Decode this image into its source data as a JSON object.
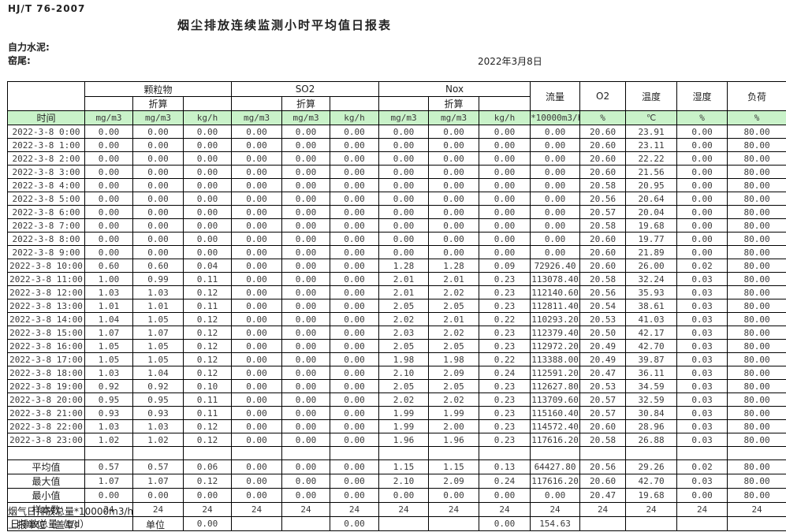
{
  "page": {
    "standard": "HJ/T  76-2007",
    "title": "烟尘排放连续监测小时平均值日报表",
    "company": "自力水泥:",
    "location": "窑尾:",
    "date": "2022年3月8日"
  },
  "table": {
    "time_label": "时间",
    "converted_label": "折算",
    "groups": {
      "pm": "颗粒物",
      "so2": "SO2",
      "nox": "Nox",
      "flow": "流量",
      "o2": "O2",
      "temp": "温度",
      "humidity": "湿度",
      "load": "负荷"
    },
    "units": [
      "mg/m3",
      "mg/m3",
      "kg/h",
      "mg/m3",
      "mg/m3",
      "kg/h",
      "mg/m3",
      "mg/m3",
      "kg/h",
      "*10000m3/h",
      "%",
      "℃",
      "%",
      "%"
    ],
    "rows": [
      {
        "time": "2022-3-8 0:00",
        "values": [
          "0.00",
          "0.00",
          "0.00",
          "0.00",
          "0.00",
          "0.00",
          "0.00",
          "0.00",
          "0.00",
          "0.00",
          "20.60",
          "23.91",
          "0.00",
          "80.00"
        ]
      },
      {
        "time": "2022-3-8 1:00",
        "values": [
          "0.00",
          "0.00",
          "0.00",
          "0.00",
          "0.00",
          "0.00",
          "0.00",
          "0.00",
          "0.00",
          "0.00",
          "20.60",
          "23.11",
          "0.00",
          "80.00"
        ]
      },
      {
        "time": "2022-3-8 2:00",
        "values": [
          "0.00",
          "0.00",
          "0.00",
          "0.00",
          "0.00",
          "0.00",
          "0.00",
          "0.00",
          "0.00",
          "0.00",
          "20.60",
          "22.22",
          "0.00",
          "80.00"
        ]
      },
      {
        "time": "2022-3-8 3:00",
        "values": [
          "0.00",
          "0.00",
          "0.00",
          "0.00",
          "0.00",
          "0.00",
          "0.00",
          "0.00",
          "0.00",
          "0.00",
          "20.60",
          "21.56",
          "0.00",
          "80.00"
        ]
      },
      {
        "time": "2022-3-8 4:00",
        "values": [
          "0.00",
          "0.00",
          "0.00",
          "0.00",
          "0.00",
          "0.00",
          "0.00",
          "0.00",
          "0.00",
          "0.00",
          "20.58",
          "20.95",
          "0.00",
          "80.00"
        ]
      },
      {
        "time": "2022-3-8 5:00",
        "values": [
          "0.00",
          "0.00",
          "0.00",
          "0.00",
          "0.00",
          "0.00",
          "0.00",
          "0.00",
          "0.00",
          "0.00",
          "20.56",
          "20.64",
          "0.00",
          "80.00"
        ]
      },
      {
        "time": "2022-3-8 6:00",
        "values": [
          "0.00",
          "0.00",
          "0.00",
          "0.00",
          "0.00",
          "0.00",
          "0.00",
          "0.00",
          "0.00",
          "0.00",
          "20.57",
          "20.04",
          "0.00",
          "80.00"
        ]
      },
      {
        "time": "2022-3-8 7:00",
        "values": [
          "0.00",
          "0.00",
          "0.00",
          "0.00",
          "0.00",
          "0.00",
          "0.00",
          "0.00",
          "0.00",
          "0.00",
          "20.58",
          "19.68",
          "0.00",
          "80.00"
        ]
      },
      {
        "time": "2022-3-8 8:00",
        "values": [
          "0.00",
          "0.00",
          "0.00",
          "0.00",
          "0.00",
          "0.00",
          "0.00",
          "0.00",
          "0.00",
          "0.00",
          "20.60",
          "19.77",
          "0.00",
          "80.00"
        ]
      },
      {
        "time": "2022-3-8 9:00",
        "values": [
          "0.00",
          "0.00",
          "0.00",
          "0.00",
          "0.00",
          "0.00",
          "0.00",
          "0.00",
          "0.00",
          "0.00",
          "20.60",
          "21.89",
          "0.00",
          "80.00"
        ]
      },
      {
        "time": "2022-3-8 10:00",
        "values": [
          "0.60",
          "0.60",
          "0.04",
          "0.00",
          "0.00",
          "0.00",
          "1.28",
          "1.28",
          "0.09",
          "72926.40",
          "20.60",
          "26.00",
          "0.02",
          "80.00"
        ]
      },
      {
        "time": "2022-3-8 11:00",
        "values": [
          "1.00",
          "0.99",
          "0.11",
          "0.00",
          "0.00",
          "0.00",
          "2.01",
          "2.01",
          "0.23",
          "113078.40",
          "20.58",
          "32.24",
          "0.03",
          "80.00"
        ]
      },
      {
        "time": "2022-3-8 12:00",
        "values": [
          "1.03",
          "1.03",
          "0.12",
          "0.00",
          "0.00",
          "0.00",
          "2.01",
          "2.02",
          "0.23",
          "112140.60",
          "20.56",
          "35.93",
          "0.03",
          "80.00"
        ]
      },
      {
        "time": "2022-3-8 13:00",
        "values": [
          "1.01",
          "1.01",
          "0.11",
          "0.00",
          "0.00",
          "0.00",
          "2.05",
          "2.05",
          "0.23",
          "112811.40",
          "20.54",
          "38.61",
          "0.03",
          "80.00"
        ]
      },
      {
        "time": "2022-3-8 14:00",
        "values": [
          "1.04",
          "1.05",
          "0.12",
          "0.00",
          "0.00",
          "0.00",
          "2.02",
          "2.01",
          "0.22",
          "110293.20",
          "20.53",
          "41.03",
          "0.03",
          "80.00"
        ]
      },
      {
        "time": "2022-3-8 15:00",
        "values": [
          "1.07",
          "1.07",
          "0.12",
          "0.00",
          "0.00",
          "0.00",
          "2.03",
          "2.02",
          "0.23",
          "112379.40",
          "20.50",
          "42.17",
          "0.03",
          "80.00"
        ]
      },
      {
        "time": "2022-3-8 16:00",
        "values": [
          "1.05",
          "1.05",
          "0.12",
          "0.00",
          "0.00",
          "0.00",
          "2.05",
          "2.05",
          "0.23",
          "112972.20",
          "20.49",
          "42.70",
          "0.03",
          "80.00"
        ]
      },
      {
        "time": "2022-3-8 17:00",
        "values": [
          "1.05",
          "1.05",
          "0.12",
          "0.00",
          "0.00",
          "0.00",
          "1.98",
          "1.98",
          "0.22",
          "113388.00",
          "20.49",
          "39.87",
          "0.03",
          "80.00"
        ]
      },
      {
        "time": "2022-3-8 18:00",
        "values": [
          "1.03",
          "1.04",
          "0.12",
          "0.00",
          "0.00",
          "0.00",
          "2.10",
          "2.09",
          "0.24",
          "112591.20",
          "20.47",
          "36.11",
          "0.03",
          "80.00"
        ]
      },
      {
        "time": "2022-3-8 19:00",
        "values": [
          "0.92",
          "0.92",
          "0.10",
          "0.00",
          "0.00",
          "0.00",
          "2.05",
          "2.05",
          "0.23",
          "112627.80",
          "20.53",
          "34.59",
          "0.03",
          "80.00"
        ]
      },
      {
        "time": "2022-3-8 20:00",
        "values": [
          "0.95",
          "0.95",
          "0.11",
          "0.00",
          "0.00",
          "0.00",
          "2.02",
          "2.02",
          "0.23",
          "113709.60",
          "20.57",
          "32.59",
          "0.03",
          "80.00"
        ]
      },
      {
        "time": "2022-3-8 21:00",
        "values": [
          "0.93",
          "0.93",
          "0.11",
          "0.00",
          "0.00",
          "0.00",
          "1.99",
          "1.99",
          "0.23",
          "115160.40",
          "20.57",
          "30.84",
          "0.03",
          "80.00"
        ]
      },
      {
        "time": "2022-3-8 22:00",
        "values": [
          "1.03",
          "1.03",
          "0.12",
          "0.00",
          "0.00",
          "0.00",
          "1.99",
          "2.00",
          "0.23",
          "114572.40",
          "20.60",
          "28.96",
          "0.03",
          "80.00"
        ]
      },
      {
        "time": "2022-3-8 23:00",
        "values": [
          "1.02",
          "1.02",
          "0.12",
          "0.00",
          "0.00",
          "0.00",
          "1.96",
          "1.96",
          "0.23",
          "117616.20",
          "20.58",
          "26.88",
          "0.03",
          "80.00"
        ]
      }
    ],
    "summary": [
      {
        "label": "平均值",
        "values": [
          "0.57",
          "0.57",
          "0.06",
          "0.00",
          "0.00",
          "0.00",
          "1.15",
          "1.15",
          "0.13",
          "64427.80",
          "20.56",
          "29.26",
          "0.02",
          "80.00"
        ]
      },
      {
        "label": "最大值",
        "values": [
          "1.07",
          "1.07",
          "0.12",
          "0.00",
          "0.00",
          "0.00",
          "2.10",
          "2.09",
          "0.24",
          "117616.20",
          "20.60",
          "42.70",
          "0.03",
          "80.00"
        ]
      },
      {
        "label": "最小值",
        "values": [
          "0.00",
          "0.00",
          "0.00",
          "0.00",
          "0.00",
          "0.00",
          "0.00",
          "0.00",
          "0.00",
          "0.00",
          "20.47",
          "19.68",
          "0.00",
          "80.00"
        ]
      },
      {
        "label": "样本数",
        "values": [
          "24",
          "24",
          "24",
          "24",
          "24",
          "24",
          "24",
          "24",
          "24",
          "24",
          "24",
          "24",
          "24",
          "24"
        ]
      }
    ],
    "daily_total": {
      "label": "日排放总量（t/d）",
      "values": [
        "",
        "0.00",
        "",
        "",
        "0.00",
        "",
        "",
        "0.00",
        "154.63",
        "",
        "",
        "",
        ""
      ]
    }
  },
  "footer": {
    "flue_gas_total": "烟气日排放总量*10000m3/h",
    "report_unit": "上报单位（盖章）",
    "unit_label": "单位"
  },
  "colors": {
    "header_green": "#c9f2c9",
    "border": "#000000",
    "text": "#3a3a3a"
  }
}
